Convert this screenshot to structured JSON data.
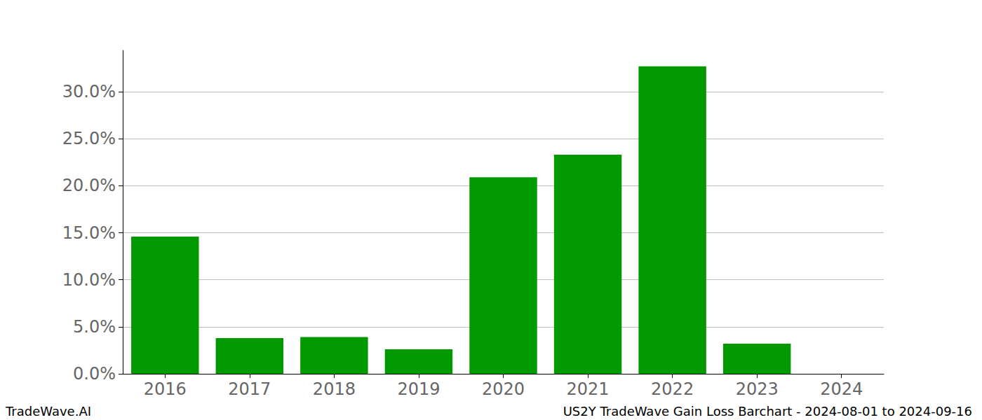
{
  "chart_data": {
    "type": "bar",
    "categories": [
      "2016",
      "2017",
      "2018",
      "2019",
      "2020",
      "2021",
      "2022",
      "2023",
      "2024"
    ],
    "values": [
      14.6,
      3.8,
      3.9,
      2.6,
      20.9,
      23.3,
      32.7,
      3.2,
      0
    ],
    "color": "#009900",
    "ylim": [
      0,
      34.4
    ],
    "yticks": [
      {
        "value": 0,
        "label": "0.0%"
      },
      {
        "value": 5,
        "label": "5.0%"
      },
      {
        "value": 10,
        "label": "10.0%"
      },
      {
        "value": 15,
        "label": "15.0%"
      },
      {
        "value": 20,
        "label": "20.0%"
      },
      {
        "value": 25,
        "label": "25.0%"
      },
      {
        "value": 30,
        "label": "30.0%"
      }
    ],
    "grid": true,
    "annotations": [
      "TradeWave.AI",
      "US2Y TradeWave Gain Loss Barchart - 2024-08-01 to 2024-09-16"
    ]
  }
}
